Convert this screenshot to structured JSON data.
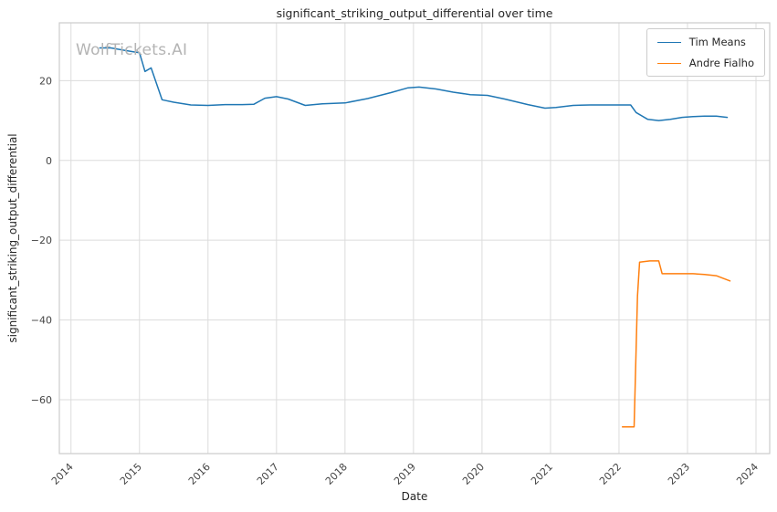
{
  "watermark": "WolfTickets.AI",
  "chart_data": {
    "type": "line",
    "title": "significant_striking_output_differential over time",
    "xlabel": "Date",
    "ylabel": "significant_striking_output_differential",
    "xlim": [
      2013.83,
      2024.2
    ],
    "ylim": [
      -73.5,
      34.5
    ],
    "x_ticks": [
      2014,
      2015,
      2016,
      2017,
      2018,
      2019,
      2020,
      2021,
      2022,
      2023,
      2024
    ],
    "y_ticks": [
      -60,
      -40,
      -20,
      0,
      20
    ],
    "grid": true,
    "grid_color": "#dcdcdc",
    "border_color": "#cccccc",
    "legend_position": "top-right",
    "series": [
      {
        "name": "Tim Means",
        "color": "#1f77b4",
        "x": [
          2014.42,
          2014.58,
          2014.75,
          2014.92,
          2015.0,
          2015.08,
          2015.17,
          2015.33,
          2015.5,
          2015.75,
          2016.0,
          2016.25,
          2016.5,
          2016.67,
          2016.83,
          2017.0,
          2017.17,
          2017.42,
          2017.67,
          2018.0,
          2018.33,
          2018.67,
          2018.92,
          2019.08,
          2019.33,
          2019.58,
          2019.83,
          2020.08,
          2020.33,
          2020.67,
          2020.92,
          2021.08,
          2021.33,
          2021.58,
          2021.83,
          2022.08,
          2022.17,
          2022.25,
          2022.42,
          2022.58,
          2022.75,
          2022.92,
          2023.08,
          2023.25,
          2023.42,
          2023.58
        ],
        "y": [
          28.2,
          28.2,
          27.7,
          27.2,
          27.0,
          22.3,
          23.2,
          15.2,
          14.6,
          13.9,
          13.8,
          14.0,
          14.0,
          14.1,
          15.6,
          16.0,
          15.4,
          13.8,
          14.2,
          14.4,
          15.5,
          17.0,
          18.2,
          18.4,
          17.9,
          17.1,
          16.5,
          16.3,
          15.4,
          14.0,
          13.1,
          13.3,
          13.8,
          13.9,
          13.9,
          13.9,
          13.9,
          12.0,
          10.3,
          10.0,
          10.3,
          10.8,
          11.0,
          11.1,
          11.1,
          10.8
        ]
      },
      {
        "name": "Andre Fialho",
        "color": "#ff7f0e",
        "x": [
          2022.05,
          2022.22,
          2022.27,
          2022.3,
          2022.45,
          2022.58,
          2022.63,
          2022.83,
          2023.08,
          2023.25,
          2023.42,
          2023.62
        ],
        "y": [
          -66.8,
          -66.8,
          -34.0,
          -25.5,
          -25.2,
          -25.2,
          -28.4,
          -28.4,
          -28.4,
          -28.6,
          -28.9,
          -30.2
        ]
      }
    ]
  }
}
